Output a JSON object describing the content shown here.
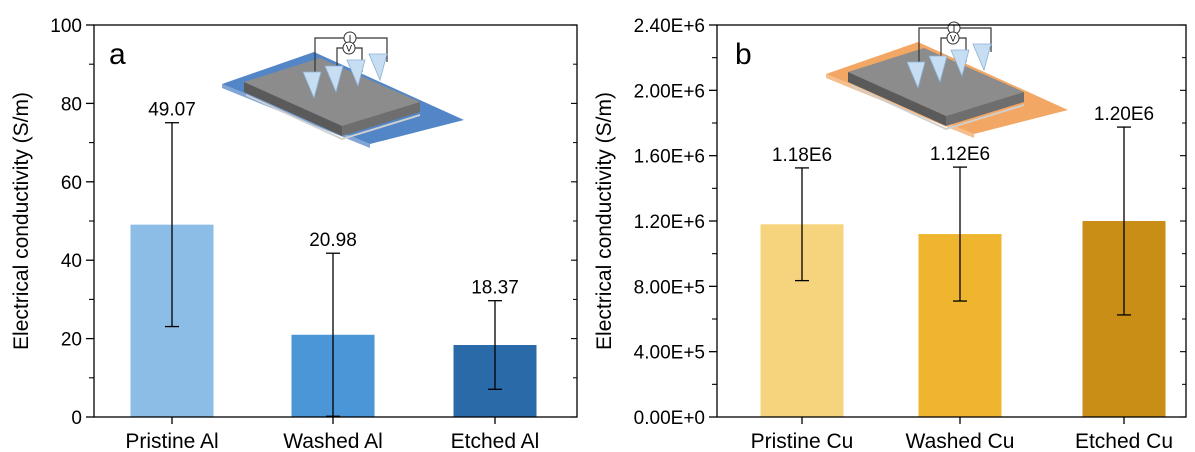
{
  "chart_data": [
    {
      "type": "bar",
      "panel_label": "a",
      "ylabel": "Electrical conductivity (S/m)",
      "ylim": [
        0,
        100
      ],
      "yticks": [
        0,
        20,
        40,
        60,
        80,
        100
      ],
      "ytick_labels": [
        "0",
        "20",
        "40",
        "60",
        "80",
        "100"
      ],
      "categories": [
        "Pristine Al",
        "Washed Al",
        "Etched Al"
      ],
      "values": [
        49.07,
        20.98,
        18.37
      ],
      "errors": [
        26,
        20.8,
        11.3
      ],
      "value_labels": [
        "49.07",
        "20.98",
        "18.37"
      ],
      "colors": [
        "#8bbde6",
        "#4a96d6",
        "#2a6aa8"
      ],
      "inset_substrate_color": "#4a7fc4"
    },
    {
      "type": "bar",
      "panel_label": "b",
      "ylabel": "Electrical conductivity (S/m)",
      "ylim": [
        0,
        2400000
      ],
      "yticks": [
        0,
        400000,
        800000,
        1200000,
        1600000,
        2000000,
        2400000
      ],
      "ytick_labels": [
        "0.00E+0",
        "4.00E+5",
        "8.00E+5",
        "1.20E+6",
        "1.60E+6",
        "2.00E+6",
        "2.40E+6"
      ],
      "categories": [
        "Pristine Cu",
        "Washed Cu",
        "Etched Cu"
      ],
      "values": [
        1180000,
        1120000,
        1200000
      ],
      "errors": [
        345000,
        410000,
        575000
      ],
      "value_labels": [
        "1.18E6",
        "1.12E6",
        "1.20E6"
      ],
      "colors": [
        "#f6d47e",
        "#efb52f",
        "#c98e15"
      ],
      "inset_substrate_color": "#f2a25c"
    }
  ],
  "inset": {
    "current_label": "I",
    "voltage_label": "V"
  }
}
